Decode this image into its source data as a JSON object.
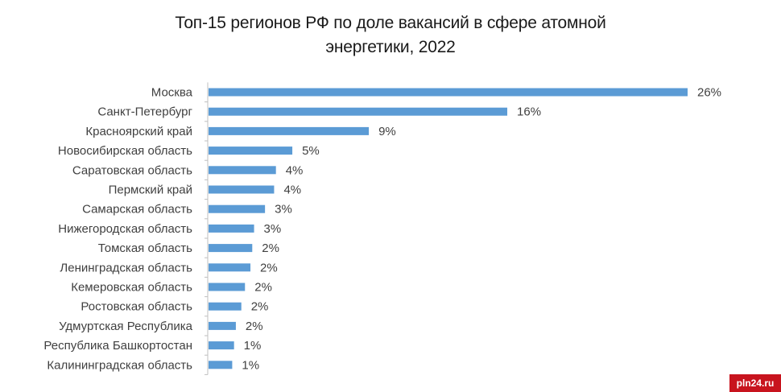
{
  "chart_data": {
    "type": "bar",
    "orientation": "horizontal",
    "title_lines": [
      "Топ-15 регионов РФ по доле вакансий в сфере атомной",
      "энергетики, 2022"
    ],
    "categories": [
      "Москва",
      "Санкт-Петербург",
      "Красноярский край",
      "Новосибирская область",
      "Саратовская область",
      "Пермский край",
      "Самарская область",
      "Нижегородская область",
      "Томская область",
      "Ленинградская область",
      "Кемеровская область",
      "Ростовская область",
      "Удмуртская Республика",
      "Республика Башкортостан",
      "Калининградская область"
    ],
    "values": [
      26,
      16,
      9,
      5,
      4,
      4,
      3,
      3,
      2,
      2,
      2,
      2,
      2,
      1,
      1
    ],
    "value_labels": [
      "26%",
      "16%",
      "9%",
      "5%",
      "4%",
      "4%",
      "3%",
      "3%",
      "2%",
      "2%",
      "2%",
      "2%",
      "2%",
      "1%",
      "1%"
    ],
    "bar_value_estimates": [
      26.3,
      16.4,
      8.8,
      4.6,
      3.7,
      3.6,
      3.1,
      2.5,
      2.4,
      2.3,
      2.0,
      1.8,
      1.5,
      1.4,
      1.3
    ],
    "xlabel": "",
    "ylabel": "",
    "xlim": [
      0,
      27.5
    ],
    "grid": false,
    "legend": "none",
    "colors": {
      "bar": "#5b9bd5",
      "axis": "#bfbfbf",
      "text": "#404040"
    }
  },
  "watermark": "pln24.ru"
}
